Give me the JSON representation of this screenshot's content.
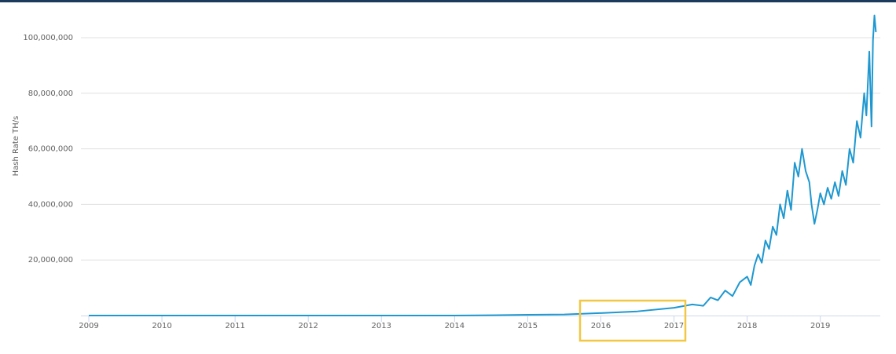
{
  "chart_data": {
    "type": "line",
    "y_label": "Hash Rate TH/s",
    "x": [
      2009.0,
      2010.0,
      2011.0,
      2012.0,
      2013.0,
      2013.5,
      2014.0,
      2014.5,
      2015.0,
      2015.5,
      2016.0,
      2016.5,
      2017.0,
      2017.25,
      2017.4,
      2017.5,
      2017.6,
      2017.7,
      2017.8,
      2017.9,
      2018.0,
      2018.05,
      2018.1,
      2018.15,
      2018.2,
      2018.25,
      2018.3,
      2018.35,
      2018.4,
      2018.45,
      2018.5,
      2018.55,
      2018.6,
      2018.65,
      2018.7,
      2018.75,
      2018.8,
      2018.85,
      2018.88,
      2018.92,
      2018.96,
      2019.0,
      2019.05,
      2019.1,
      2019.15,
      2019.2,
      2019.25,
      2019.3,
      2019.35,
      2019.4,
      2019.45,
      2019.5,
      2019.55,
      2019.6,
      2019.63,
      2019.67,
      2019.7,
      2019.72,
      2019.74,
      2019.76
    ],
    "series": [
      {
        "name": "Hash Rate",
        "color": "#1f98d0",
        "values": [
          0,
          0,
          10,
          10,
          25,
          300,
          10000,
          100000,
          300000,
          400000,
          900000,
          1500000,
          2800000,
          4000000,
          3500000,
          6500000,
          5500000,
          9000000,
          7000000,
          12000000,
          14000000,
          11000000,
          18000000,
          22000000,
          19000000,
          27000000,
          24000000,
          32000000,
          29000000,
          40000000,
          35000000,
          45000000,
          38000000,
          55000000,
          50000000,
          60000000,
          52000000,
          48000000,
          40000000,
          33000000,
          38000000,
          44000000,
          40000000,
          46000000,
          42000000,
          48000000,
          43000000,
          52000000,
          47000000,
          60000000,
          55000000,
          70000000,
          64000000,
          80000000,
          72000000,
          95000000,
          68000000,
          99000000,
          108000000,
          102000000
        ]
      }
    ],
    "xlim": [
      2009,
      2019.82
    ],
    "xticks": [
      2009,
      2010,
      2011,
      2012,
      2013,
      2014,
      2015,
      2016,
      2017,
      2018,
      2019
    ],
    "ylim": [
      0,
      110000000
    ],
    "yticks": [
      {
        "value": 20000000,
        "label": "20,000,000"
      },
      {
        "value": 40000000,
        "label": "40,000,000"
      },
      {
        "value": 60000000,
        "label": "60,000,000"
      },
      {
        "value": 80000000,
        "label": "80,000,000"
      },
      {
        "value": 100000000,
        "label": "100,000,000"
      }
    ],
    "grid": true
  }
}
